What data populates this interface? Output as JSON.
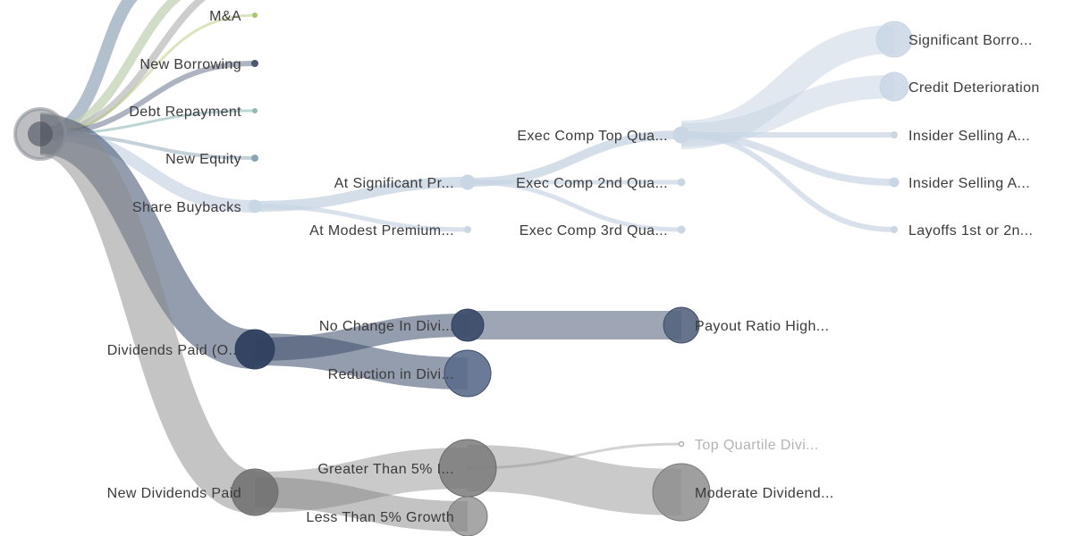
{
  "diagram": {
    "type": "collapsible-tree",
    "root": {
      "label": ""
    },
    "col1": {
      "ma": "M&A",
      "new_borrowing": "New Borrowing",
      "debt_repayment": "Debt Repayment",
      "new_equity": "New Equity",
      "share_buybacks": "Share Buybacks",
      "dividends_paid": "Dividends Paid (O...",
      "new_dividends_paid": "New Dividends Paid"
    },
    "col2": {
      "at_significant": "At Significant Pr...",
      "at_modest": "At Modest Premium...",
      "no_change": "No Change In Divi...",
      "reduction": "Reduction in Divi...",
      "greater_than": "Greater Than 5% I...",
      "less_than": "Less Than 5% Growth"
    },
    "col3": {
      "exec_top": "Exec Comp Top Qua...",
      "exec_2nd": "Exec Comp 2nd Qua...",
      "exec_3rd": "Exec Comp 3rd Qua...",
      "payout_ratio": "Payout Ratio High...",
      "top_quartile": "Top Quartile Divi...",
      "moderate": "Moderate Dividend..."
    },
    "col4": {
      "significant_borrowing": "Significant Borro...",
      "credit_deterioration": "Credit Deterioration",
      "insider_selling_1": "Insider Selling A...",
      "insider_selling_2": "Insider Selling A...",
      "layoffs": "Layoffs 1st or 2n..."
    },
    "colors": {
      "dividends": "#3d4d6b",
      "new_dividends": "#8a8a8a",
      "buybacks": "#c9d6e4",
      "borrowing": "#4a5775",
      "ma": "#a8c66c",
      "debt": "#8fb9b9",
      "equity": "#8aa4b6"
    }
  }
}
